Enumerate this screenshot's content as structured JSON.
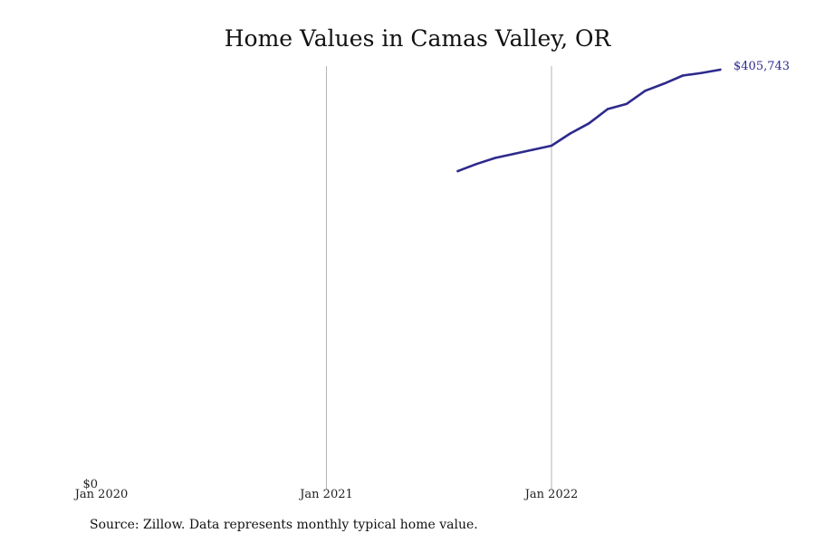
{
  "chart_data": {
    "type": "line",
    "title": "Home Values in Camas Valley, OR",
    "xlabel": "",
    "ylabel": "",
    "x_range": [
      "2020-01",
      "2022-11"
    ],
    "ylim": [
      0,
      405743
    ],
    "y_tick_label": "$0",
    "x_ticks": [
      {
        "date": "2020-01",
        "label": "Jan 2020"
      },
      {
        "date": "2021-01",
        "label": "Jan 2021"
      },
      {
        "date": "2022-01",
        "label": "Jan 2022"
      }
    ],
    "grid": "vertical lines at Jan 2021 and Jan 2022",
    "series": [
      {
        "color": "#2e2a8c",
        "points": [
          {
            "x": "2021-08",
            "y": 306000
          },
          {
            "x": "2021-09",
            "y": 313000
          },
          {
            "x": "2021-10",
            "y": 319000
          },
          {
            "x": "2021-11",
            "y": 323000
          },
          {
            "x": "2021-12",
            "y": 327000
          },
          {
            "x": "2022-01",
            "y": 331000
          },
          {
            "x": "2022-02",
            "y": 343000
          },
          {
            "x": "2022-03",
            "y": 353000
          },
          {
            "x": "2022-04",
            "y": 367000
          },
          {
            "x": "2022-05",
            "y": 372000
          },
          {
            "x": "2022-06",
            "y": 385000
          },
          {
            "x": "2022-07",
            "y": 392000
          },
          {
            "x": "2022-08",
            "y": 400000
          },
          {
            "x": "2022-09",
            "y": 402500
          },
          {
            "x": "2022-10",
            "y": 405743
          }
        ]
      }
    ],
    "end_label": "$405,743"
  },
  "source": "Source: Zillow. Data represents monthly typical home value."
}
